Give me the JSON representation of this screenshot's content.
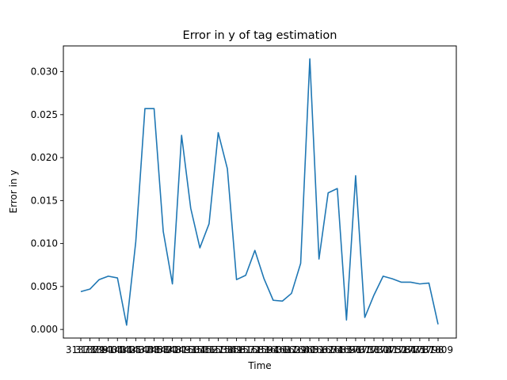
{
  "chart_data": {
    "type": "line",
    "title": "Error in y of tag estimation",
    "xlabel": "Time",
    "ylabel": "Error in y",
    "ylim": [
      -0.001,
      0.033
    ],
    "yticks": [
      "0.000",
      "0.005",
      "0.010",
      "0.015",
      "0.020",
      "0.025",
      "0.030"
    ],
    "ytick_values": [
      0,
      0.005,
      0.01,
      0.015,
      0.02,
      0.025,
      0.03
    ],
    "grid": false,
    "line_color": "#1f77b4",
    "x_tick_labels": [
      "31373",
      "31379",
      "31391",
      "31404",
      "31414",
      "31425",
      "31437",
      "31448",
      "31458",
      "31470",
      "31481",
      "31493",
      "31504",
      "31516",
      "31527",
      "31538",
      "31549",
      "31561",
      "31572",
      "31583",
      "31594",
      "31606",
      "31617",
      "31629",
      "31640",
      "31651",
      "31662",
      "31674",
      "31685",
      "31696",
      "31707",
      "31718",
      "31730",
      "31741",
      "31752",
      "31764",
      "31775",
      "31787",
      "31798",
      "31809",
      "31820",
      "31831",
      "31843",
      "31854",
      "31866",
      "31877",
      "31888",
      "31899",
      "31910",
      "31921",
      "31933",
      "31944",
      "31955",
      "31966",
      "31977",
      "31989",
      "32000",
      "32011",
      "32022",
      "32034",
      "32045",
      "32056",
      "32067",
      "32078",
      "32090",
      "32101",
      "32112",
      "32123",
      "32135",
      "32146",
      "32157",
      "32168",
      "32179",
      "32191",
      "32202",
      "32213",
      "32224",
      "32235",
      "32247",
      "32258",
      "32269",
      "32280",
      "32291",
      "32303",
      "32314",
      "32325",
      "32336",
      "32347",
      "32359",
      "32370",
      "32381",
      "32392",
      "32403",
      "32415",
      "32426",
      "32437",
      "32448",
      "32459",
      "32471",
      "32482",
      "32493",
      "32504",
      "32515",
      "32527",
      "32538",
      "32549",
      "32560",
      "32571",
      "32583",
      "32594",
      "32605",
      "32616",
      "32627",
      "32639",
      "32650",
      "32661",
      "32672",
      "32683",
      "32695",
      "32706",
      "32717",
      "32728",
      "32739",
      "32751",
      "32762",
      "32773",
      "32784",
      "32795",
      "32807",
      "32818",
      "32829",
      "32840",
      "32851",
      "32863",
      "32874",
      "32885",
      "32896",
      "32907",
      "32919",
      "32930",
      "32941",
      "32952",
      "32963",
      "32975",
      "32986",
      "32997",
      "33008",
      "33019",
      "33031",
      "33042",
      "33053",
      "33064",
      "33075",
      "33087",
      "33098",
      "33109",
      "33120",
      "33131",
      "33143",
      "33154",
      "33165",
      "33176",
      "33187",
      "33199",
      "33210",
      "33221",
      "33232",
      "33243",
      "33255",
      "33266",
      "33277",
      "33288",
      "33299",
      "33311",
      "33322",
      "33333",
      "33344",
      "33355",
      "33367",
      "33377"
    ],
    "values": [
      0.0044,
      0.0047,
      0.0058,
      0.0062,
      0.006,
      0.0005,
      0.0102,
      0.0257,
      0.0257,
      0.0114,
      0.0053,
      0.0226,
      0.0141,
      0.0095,
      0.0123,
      0.0229,
      0.0187,
      0.0058,
      0.0063,
      0.0092,
      0.0059,
      0.0034,
      0.0033,
      0.0042,
      0.0077,
      0.0315,
      0.0082,
      0.0159,
      0.0164,
      0.0011,
      0.0179,
      0.0014,
      0.004,
      0.0062,
      0.0059,
      0.0055,
      0.0055,
      0.0053,
      0.0054,
      0.0006
    ]
  }
}
